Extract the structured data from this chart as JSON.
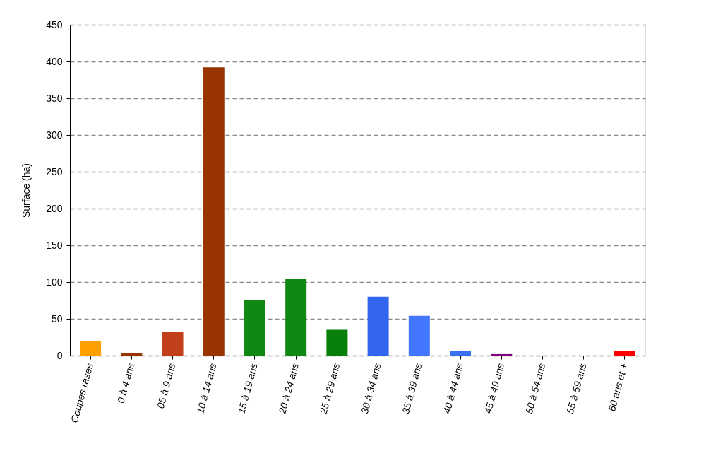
{
  "chart_data": {
    "type": "bar",
    "ylabel": "Surface (ha)",
    "categories": [
      "Coupes rases",
      "0 à 4 ans",
      "05 à 9 ans",
      "10 à 14 ans",
      "15 à 19 ans",
      "20 à 24 ans",
      "25 à 29 ans",
      "30 à 34 ans",
      "35 à 39 ans",
      "40 à 44 ans",
      "45 à 49 ans",
      "50 à 54 ans",
      "55 à 59 ans",
      "60 ans et +"
    ],
    "values": [
      20,
      3,
      32,
      392,
      75,
      104,
      35,
      80,
      54,
      6,
      2,
      0,
      0,
      6
    ],
    "colors": [
      "#ffa000",
      "#993300",
      "#c0401a",
      "#993300",
      "#118811",
      "#118811",
      "#087f08",
      "#3366ee",
      "#4477ff",
      "#3a6fee",
      "#800080",
      "#3a6fee",
      "#3a6fee",
      "#ff0000"
    ],
    "ylim": [
      0,
      450
    ],
    "yticks": [
      0,
      50,
      100,
      150,
      200,
      250,
      300,
      350,
      400,
      450
    ],
    "grid": "y"
  }
}
